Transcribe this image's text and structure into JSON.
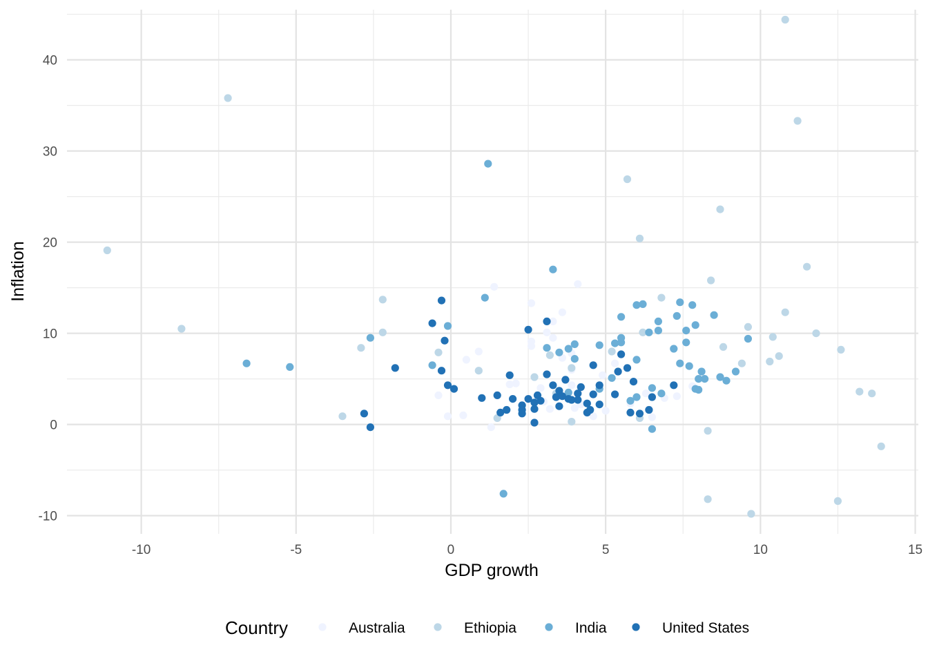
{
  "chart_data": {
    "type": "scatter",
    "xlabel": "GDP growth",
    "ylabel": "Inflation",
    "xlim": [
      -12.4,
      15.1
    ],
    "ylim": [
      -12.0,
      45.5
    ],
    "x_ticks": [
      -10,
      -5,
      0,
      5,
      10,
      15
    ],
    "x_tick_labels": [
      "-10",
      "-5",
      "0",
      "5",
      "10",
      "15"
    ],
    "y_ticks": [
      -10,
      0,
      10,
      20,
      30,
      40
    ],
    "y_tick_labels": [
      "-10",
      "0",
      "10",
      "20",
      "30",
      "40"
    ],
    "grid": true,
    "legend": {
      "title": "Country",
      "placement": "bottom"
    },
    "series": [
      {
        "name": "Australia",
        "color": "#eff3ff",
        "points": [
          [
            1.3,
            -0.3
          ],
          [
            -0.4,
            3.2
          ],
          [
            -0.1,
            0.9
          ],
          [
            0.4,
            1.0
          ],
          [
            0.5,
            7.1
          ],
          [
            0.9,
            8.0
          ],
          [
            0.9,
            5.9
          ],
          [
            1.4,
            15.1
          ],
          [
            1.9,
            4.4
          ],
          [
            2.1,
            4.5
          ],
          [
            2.6,
            13.3
          ],
          [
            2.6,
            9.1
          ],
          [
            2.6,
            8.6
          ],
          [
            3.1,
            10.1
          ],
          [
            3.3,
            11.3
          ],
          [
            3.3,
            9.5
          ],
          [
            3.6,
            12.3
          ],
          [
            3.6,
            7.3
          ],
          [
            3.9,
            7.8
          ],
          [
            3.9,
            6.0
          ],
          [
            3.9,
            4.3
          ],
          [
            4.0,
            1.8
          ],
          [
            4.1,
            15.4
          ],
          [
            4.2,
            2.2
          ],
          [
            4.6,
            0.9
          ],
          [
            4.9,
            5.4
          ],
          [
            5.0,
            1.5
          ],
          [
            5.3,
            6.7
          ],
          [
            5.8,
            2.3
          ],
          [
            6.3,
            3.4
          ],
          [
            6.5,
            0.8
          ],
          [
            6.9,
            2.9
          ],
          [
            7.3,
            3.1
          ],
          [
            7.8,
            4.2
          ],
          [
            3.0,
            2.5
          ],
          [
            3.2,
            1.7
          ],
          [
            2.9,
            4.0
          ]
        ]
      },
      {
        "name": "Ethiopia",
        "color": "#bdd7e7",
        "points": [
          [
            -11.1,
            19.1
          ],
          [
            -8.7,
            10.5
          ],
          [
            -7.2,
            35.8
          ],
          [
            -3.5,
            0.9
          ],
          [
            -2.9,
            8.4
          ],
          [
            -2.2,
            13.7
          ],
          [
            -2.2,
            10.1
          ],
          [
            -0.4,
            7.9
          ],
          [
            0.9,
            5.9
          ],
          [
            1.5,
            0.7
          ],
          [
            2.7,
            5.2
          ],
          [
            3.2,
            7.6
          ],
          [
            3.4,
            3.4
          ],
          [
            3.9,
            0.3
          ],
          [
            3.9,
            6.2
          ],
          [
            5.2,
            8.0
          ],
          [
            5.7,
            26.9
          ],
          [
            6.1,
            20.4
          ],
          [
            6.1,
            0.7
          ],
          [
            6.2,
            10.1
          ],
          [
            6.8,
            13.9
          ],
          [
            8.3,
            -0.7
          ],
          [
            8.3,
            -8.2
          ],
          [
            8.4,
            15.8
          ],
          [
            8.7,
            23.6
          ],
          [
            8.8,
            8.5
          ],
          [
            9.4,
            6.7
          ],
          [
            9.6,
            10.7
          ],
          [
            9.7,
            -9.8
          ],
          [
            10.3,
            6.9
          ],
          [
            10.4,
            9.6
          ],
          [
            10.6,
            7.5
          ],
          [
            10.8,
            44.4
          ],
          [
            10.8,
            12.3
          ],
          [
            11.2,
            33.3
          ],
          [
            11.5,
            17.3
          ],
          [
            11.8,
            10.0
          ],
          [
            12.5,
            -8.4
          ],
          [
            12.6,
            8.2
          ],
          [
            13.2,
            3.6
          ],
          [
            13.6,
            3.4
          ],
          [
            13.9,
            -2.4
          ]
        ]
      },
      {
        "name": "India",
        "color": "#6baed6",
        "points": [
          [
            -6.6,
            6.7
          ],
          [
            -5.2,
            6.3
          ],
          [
            -2.6,
            9.5
          ],
          [
            -0.6,
            6.5
          ],
          [
            -0.1,
            10.8
          ],
          [
            1.1,
            13.9
          ],
          [
            1.2,
            28.6
          ],
          [
            1.7,
            -7.6
          ],
          [
            3.1,
            8.4
          ],
          [
            3.3,
            17.0
          ],
          [
            3.5,
            7.9
          ],
          [
            3.8,
            8.3
          ],
          [
            3.8,
            3.5
          ],
          [
            4.0,
            8.8
          ],
          [
            4.0,
            7.2
          ],
          [
            4.8,
            8.7
          ],
          [
            4.8,
            3.9
          ],
          [
            5.2,
            5.1
          ],
          [
            5.3,
            8.9
          ],
          [
            5.5,
            11.8
          ],
          [
            5.5,
            9.0
          ],
          [
            5.5,
            9.5
          ],
          [
            5.8,
            2.6
          ],
          [
            6.0,
            7.1
          ],
          [
            6.0,
            13.1
          ],
          [
            6.0,
            3.0
          ],
          [
            6.2,
            13.2
          ],
          [
            6.4,
            10.1
          ],
          [
            6.5,
            4.0
          ],
          [
            6.5,
            -0.5
          ],
          [
            6.7,
            10.3
          ],
          [
            6.7,
            11.3
          ],
          [
            6.8,
            3.4
          ],
          [
            7.2,
            8.3
          ],
          [
            7.3,
            11.9
          ],
          [
            7.4,
            13.4
          ],
          [
            7.4,
            6.7
          ],
          [
            7.6,
            9.0
          ],
          [
            7.6,
            10.3
          ],
          [
            7.7,
            6.4
          ],
          [
            7.8,
            13.1
          ],
          [
            7.9,
            10.9
          ],
          [
            7.9,
            3.9
          ],
          [
            8.0,
            5.0
          ],
          [
            8.0,
            3.8
          ],
          [
            8.1,
            5.8
          ],
          [
            8.2,
            5.0
          ],
          [
            8.5,
            12.0
          ],
          [
            8.7,
            5.2
          ],
          [
            8.9,
            4.8
          ],
          [
            9.2,
            5.8
          ],
          [
            9.6,
            9.4
          ]
        ]
      },
      {
        "name": "United States",
        "color": "#2171b5",
        "points": [
          [
            -2.8,
            1.2
          ],
          [
            -2.6,
            -0.3
          ],
          [
            -1.8,
            6.2
          ],
          [
            -0.6,
            11.1
          ],
          [
            -0.3,
            13.6
          ],
          [
            -0.3,
            5.9
          ],
          [
            -0.2,
            9.2
          ],
          [
            -0.1,
            4.3
          ],
          [
            0.1,
            3.9
          ],
          [
            1.0,
            2.9
          ],
          [
            1.5,
            3.2
          ],
          [
            1.6,
            1.3
          ],
          [
            1.8,
            1.6
          ],
          [
            1.9,
            5.4
          ],
          [
            2.0,
            2.8
          ],
          [
            2.3,
            2.1
          ],
          [
            2.3,
            1.2
          ],
          [
            2.3,
            1.6
          ],
          [
            2.5,
            10.4
          ],
          [
            2.5,
            2.8
          ],
          [
            2.7,
            1.7
          ],
          [
            2.7,
            0.2
          ],
          [
            2.7,
            2.4
          ],
          [
            2.8,
            3.2
          ],
          [
            2.9,
            2.6
          ],
          [
            3.1,
            5.5
          ],
          [
            3.1,
            11.3
          ],
          [
            3.3,
            4.3
          ],
          [
            3.4,
            3.0
          ],
          [
            3.5,
            2.0
          ],
          [
            3.5,
            3.7
          ],
          [
            3.6,
            3.1
          ],
          [
            3.7,
            4.9
          ],
          [
            3.8,
            2.8
          ],
          [
            3.9,
            2.7
          ],
          [
            4.1,
            2.7
          ],
          [
            4.1,
            3.4
          ],
          [
            4.2,
            4.1
          ],
          [
            4.4,
            1.3
          ],
          [
            4.4,
            2.3
          ],
          [
            4.5,
            1.6
          ],
          [
            4.6,
            3.3
          ],
          [
            4.6,
            6.5
          ],
          [
            4.8,
            4.3
          ],
          [
            4.8,
            2.2
          ],
          [
            5.3,
            3.3
          ],
          [
            5.4,
            5.8
          ],
          [
            5.5,
            7.7
          ],
          [
            5.7,
            6.2
          ],
          [
            5.8,
            1.3
          ],
          [
            5.9,
            4.7
          ],
          [
            6.1,
            1.2
          ],
          [
            6.4,
            1.6
          ],
          [
            6.5,
            3.0
          ],
          [
            7.2,
            4.3
          ]
        ]
      }
    ]
  }
}
